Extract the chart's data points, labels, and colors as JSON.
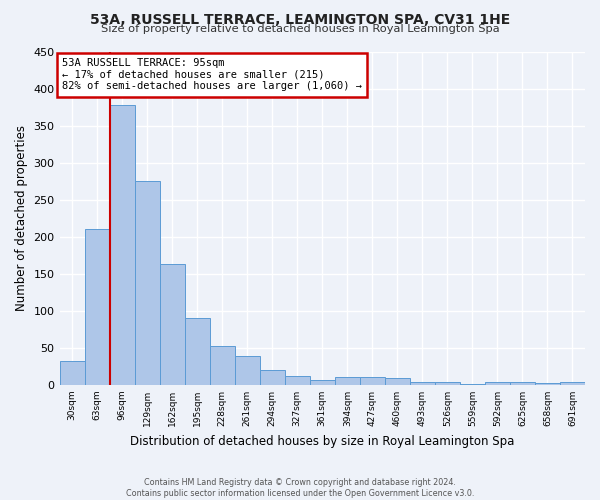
{
  "title": "53A, RUSSELL TERRACE, LEAMINGTON SPA, CV31 1HE",
  "subtitle": "Size of property relative to detached houses in Royal Leamington Spa",
  "xlabel": "Distribution of detached houses by size in Royal Leamington Spa",
  "ylabel": "Number of detached properties",
  "footer_line1": "Contains HM Land Registry data © Crown copyright and database right 2024.",
  "footer_line2": "Contains public sector information licensed under the Open Government Licence v3.0.",
  "annotation_line1": "53A RUSSELL TERRACE: 95sqm",
  "annotation_line2": "← 17% of detached houses are smaller (215)",
  "annotation_line3": "82% of semi-detached houses are larger (1,060) →",
  "bar_values": [
    32,
    210,
    378,
    275,
    163,
    90,
    52,
    39,
    20,
    12,
    7,
    11,
    11,
    10,
    4,
    4,
    1,
    4,
    4,
    2,
    4
  ],
  "bar_labels": [
    "30sqm",
    "63sqm",
    "96sqm",
    "129sqm",
    "162sqm",
    "195sqm",
    "228sqm",
    "261sqm",
    "294sqm",
    "327sqm",
    "361sqm",
    "394sqm",
    "427sqm",
    "460sqm",
    "493sqm",
    "526sqm",
    "559sqm",
    "592sqm",
    "625sqm",
    "658sqm",
    "691sqm"
  ],
  "bar_color": "#aec6e8",
  "bar_edge_color": "#5b9bd5",
  "marker_bin_index": 2,
  "ylim": [
    0,
    450
  ],
  "yticks": [
    0,
    50,
    100,
    150,
    200,
    250,
    300,
    350,
    400,
    450
  ],
  "background_color": "#eef2f9",
  "grid_color": "#ffffff",
  "annotation_box_color": "#ffffff",
  "annotation_box_edge": "#cc0000",
  "marker_line_color": "#cc0000"
}
